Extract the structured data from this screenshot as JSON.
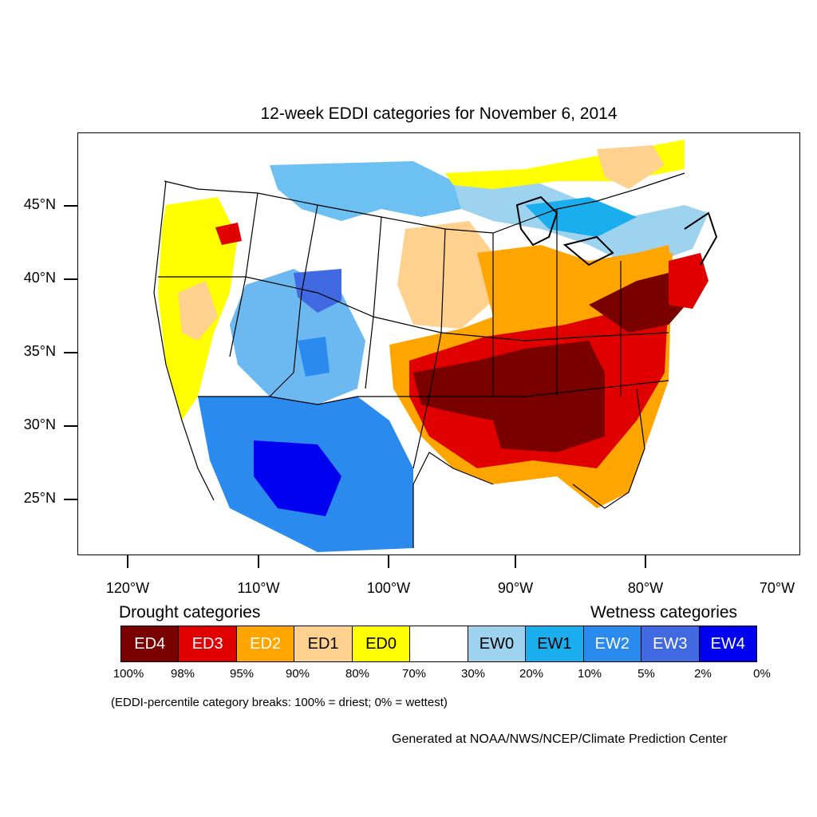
{
  "title": "12-week EDDI categories for November 6, 2014",
  "lat_labels": [
    "45°N",
    "40°N",
    "35°N",
    "30°N",
    "25°N"
  ],
  "lon_labels": [
    "120°W",
    "110°W",
    "100°W",
    "90°W",
    "80°W",
    "70°W"
  ],
  "legend": {
    "drought_heading": "Drought categories",
    "wetness_heading": "Wetness categories",
    "categories": [
      {
        "label": "ED4",
        "color": "#7a0000",
        "text_color": "#ffffff"
      },
      {
        "label": "ED3",
        "color": "#e00000",
        "text_color": "#ffffff"
      },
      {
        "label": "ED2",
        "color": "#ffa500",
        "text_color": "#ffffff"
      },
      {
        "label": "ED1",
        "color": "#ffd18f",
        "text_color": "#000000"
      },
      {
        "label": "ED0",
        "color": "#ffff00",
        "text_color": "#000000"
      },
      {
        "label": "",
        "color": "#ffffff",
        "text_color": "#000000"
      },
      {
        "label": "EW0",
        "color": "#9ed3f0",
        "text_color": "#000000"
      },
      {
        "label": "EW1",
        "color": "#1aaeee",
        "text_color": "#000000"
      },
      {
        "label": "EW2",
        "color": "#2a8aee",
        "text_color": "#ffffff"
      },
      {
        "label": "EW3",
        "color": "#4169e1",
        "text_color": "#ffffff"
      },
      {
        "label": "EW4",
        "color": "#0000f0",
        "text_color": "#ffffff"
      }
    ],
    "percent_breaks": [
      "100%",
      "98%",
      "95%",
      "90%",
      "80%",
      "70%",
      "30%",
      "20%",
      "10%",
      "5%",
      "2%",
      "0%"
    ]
  },
  "note": "(EDDI-percentile category breaks: 100% = driest; 0% = wettest)",
  "credit": "Generated at NOAA/NWS/NCEP/Climate Prediction Center"
}
